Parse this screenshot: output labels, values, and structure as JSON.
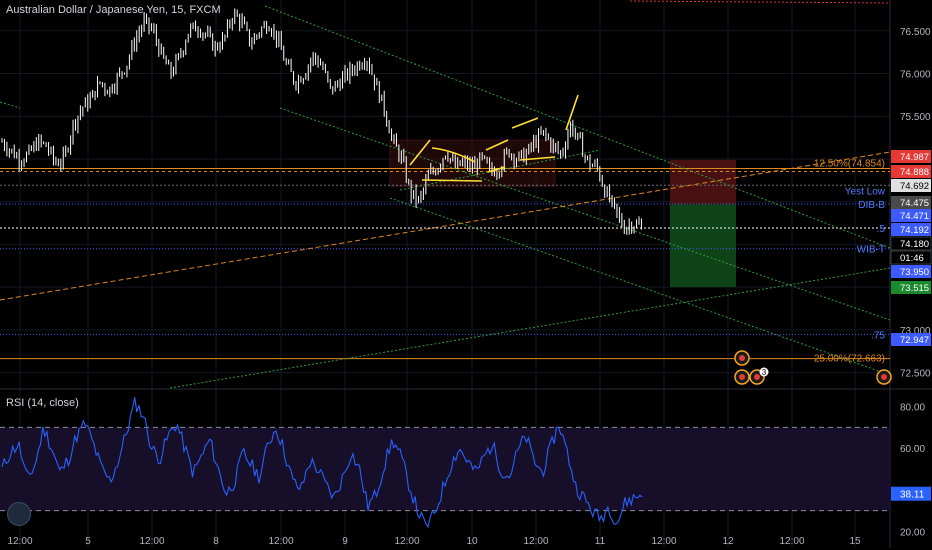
{
  "header": {
    "title": "Australian Dollar / Japanese Yen, 15, FXCM"
  },
  "rsi_panel": {
    "title": "RSI (14, close)"
  },
  "colors": {
    "background": "#000000",
    "candle": "#ffffff",
    "grid": "#131722",
    "axis_text": "#b2b5be",
    "rsi_line": "#2962ff",
    "green_dotted": "#2e9e3a",
    "orange": "#e08a1e",
    "yellow": "#ffe033",
    "blue_level": "#3d5afe",
    "red_zone": "#5a1414",
    "green_zone": "#0f4a1a",
    "price_tag": "#ffffff"
  },
  "chart_data": [
    {
      "type": "candlestick",
      "title": "Australian Dollar / Japanese Yen, 15, FXCM",
      "ylim": [
        72.32,
        76.86
      ],
      "y_ticks": [
        "76.500",
        "76.000",
        "75.500",
        "75.000",
        "74.500",
        "74.000",
        "73.500",
        "73.000",
        "72.500"
      ],
      "x_ticks": [
        "12:00",
        "5",
        "12:00",
        "8",
        "12:00",
        "9",
        "12:00",
        "10",
        "12:00",
        "11",
        "12:00",
        "12",
        "12:00",
        "15"
      ],
      "close_profile": [
        75.2,
        75.1,
        75.0,
        75.05,
        75.2,
        75.15,
        74.95,
        75.0,
        75.4,
        75.6,
        75.7,
        75.9,
        75.8,
        75.95,
        76.1,
        76.4,
        76.6,
        76.5,
        76.2,
        76.0,
        76.2,
        76.5,
        76.55,
        76.45,
        76.3,
        76.4,
        76.7,
        76.6,
        76.35,
        76.5,
        76.6,
        76.4,
        76.1,
        75.9,
        76.0,
        76.2,
        76.1,
        75.8,
        75.9,
        76.0,
        76.1,
        76.2,
        75.9,
        75.6,
        75.2,
        75.0,
        74.6,
        74.5,
        74.8,
        74.9,
        75.1,
        74.9,
        74.95,
        74.9,
        75.0,
        74.85,
        74.9,
        75.1,
        75.0,
        75.05,
        75.2,
        75.3,
        75.15,
        75.05,
        75.4,
        75.2,
        74.95,
        74.9,
        74.6,
        74.4,
        74.2,
        74.25,
        74.2
      ],
      "price_scale_labels": [
        "74.987",
        "74.888",
        "74.692",
        "74.475",
        "74.471",
        "74.192",
        "74.180",
        "01:46",
        "73.950",
        "73.515",
        "72.947"
      ],
      "level_labels": [
        "12.50%(74.854)",
        "Yest Low",
        "DIB-B",
        ".5",
        "WIB-T",
        ".75",
        "25.00%(72.663)"
      ],
      "annotations": [
        "3"
      ]
    },
    {
      "type": "line",
      "title": "RSI (14, close)",
      "ylim": [
        12,
        88
      ],
      "y_ticks": [
        "80.00",
        "60.00",
        "40.00",
        "20.00"
      ],
      "band_upper": 70,
      "band_lower": 30,
      "last_value": "38.11",
      "values": [
        50,
        58,
        62,
        45,
        52,
        70,
        60,
        48,
        55,
        66,
        72,
        62,
        50,
        44,
        54,
        68,
        82,
        76,
        60,
        55,
        66,
        72,
        60,
        48,
        56,
        64,
        50,
        38,
        44,
        58,
        52,
        46,
        62,
        70,
        58,
        44,
        40,
        54,
        50,
        42,
        36,
        46,
        58,
        50,
        32,
        38,
        52,
        64,
        56,
        42,
        30,
        22,
        28,
        40,
        52,
        60,
        54,
        48,
        56,
        62,
        50,
        46,
        58,
        66,
        54,
        48,
        60,
        72,
        58,
        42,
        36,
        30,
        26,
        32,
        24,
        34,
        36,
        38
      ]
    }
  ]
}
